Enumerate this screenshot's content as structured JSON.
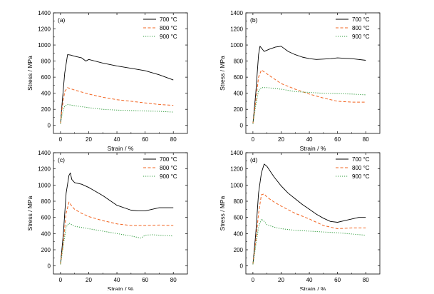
{
  "chart_data": [
    {
      "panel_label": "(a)",
      "type": "line",
      "xlabel": "Strain / %",
      "ylabel": "Stress / MPa",
      "xlim": [
        -5,
        90
      ],
      "ylim": [
        -100,
        1400
      ],
      "xticks": [
        0,
        20,
        40,
        60,
        80
      ],
      "yticks": [
        0,
        200,
        400,
        600,
        800,
        1000,
        1200,
        1400
      ],
      "legend_position": "top-right",
      "series": [
        {
          "name": "700 °C",
          "color": "#000000",
          "dash": "solid",
          "x": [
            0,
            1,
            3,
            5,
            7,
            10,
            15,
            18,
            20,
            30,
            40,
            50,
            60,
            70,
            80
          ],
          "y": [
            20,
            250,
            650,
            880,
            875,
            860,
            840,
            800,
            820,
            775,
            740,
            710,
            680,
            630,
            565
          ]
        },
        {
          "name": "800 °C",
          "color": "#f26522",
          "dash": "dashed",
          "x": [
            0,
            1,
            3,
            5,
            10,
            20,
            30,
            40,
            50,
            60,
            70,
            80
          ],
          "y": [
            20,
            200,
            420,
            470,
            440,
            390,
            350,
            320,
            300,
            280,
            260,
            250
          ]
        },
        {
          "name": "900 °C",
          "color": "#2e9b3a",
          "dash": "dotted",
          "x": [
            0,
            1,
            3,
            5,
            10,
            20,
            30,
            40,
            50,
            60,
            70,
            80
          ],
          "y": [
            20,
            130,
            240,
            260,
            245,
            220,
            200,
            190,
            185,
            180,
            175,
            165
          ]
        }
      ]
    },
    {
      "panel_label": "(b)",
      "type": "line",
      "xlabel": "Strain / %",
      "ylabel": "Stress / MPa",
      "xlim": [
        -5,
        90
      ],
      "ylim": [
        -100,
        1400
      ],
      "xticks": [
        0,
        20,
        40,
        60,
        80
      ],
      "yticks": [
        0,
        200,
        400,
        600,
        800,
        1000,
        1200,
        1400
      ],
      "legend_position": "top-right",
      "series": [
        {
          "name": "700 °C",
          "color": "#000000",
          "dash": "solid",
          "x": [
            0,
            2,
            4,
            5,
            8,
            12,
            16,
            20,
            25,
            30,
            35,
            40,
            45,
            50,
            55,
            60,
            65,
            70,
            75,
            80
          ],
          "y": [
            20,
            400,
            880,
            985,
            920,
            950,
            975,
            985,
            920,
            880,
            850,
            830,
            820,
            825,
            830,
            840,
            835,
            830,
            820,
            810
          ]
        },
        {
          "name": "800 °C",
          "color": "#f26522",
          "dash": "dashed",
          "x": [
            0,
            2,
            4,
            6,
            10,
            15,
            20,
            30,
            40,
            50,
            60,
            70,
            80
          ],
          "y": [
            20,
            300,
            600,
            690,
            640,
            580,
            520,
            450,
            390,
            340,
            300,
            290,
            290
          ]
        },
        {
          "name": "900 °C",
          "color": "#2e9b3a",
          "dash": "dotted",
          "x": [
            0,
            2,
            4,
            6,
            10,
            20,
            30,
            40,
            50,
            60,
            70,
            80
          ],
          "y": [
            20,
            250,
            430,
            470,
            470,
            450,
            420,
            410,
            400,
            395,
            390,
            380
          ]
        }
      ]
    },
    {
      "panel_label": "(c)",
      "type": "line",
      "xlabel": "Strain / %",
      "ylabel": "Stress / MPa",
      "xlim": [
        -5,
        90
      ],
      "ylim": [
        -100,
        1400
      ],
      "xticks": [
        0,
        20,
        40,
        60,
        80
      ],
      "yticks": [
        0,
        200,
        400,
        600,
        800,
        1000,
        1200,
        1400
      ],
      "legend_position": "top-right",
      "series": [
        {
          "name": "700 °C",
          "color": "#000000",
          "dash": "solid",
          "x": [
            0,
            2,
            4,
            6,
            7,
            8,
            10,
            15,
            20,
            30,
            40,
            50,
            55,
            60,
            65,
            70,
            75,
            80
          ],
          "y": [
            20,
            400,
            900,
            1120,
            1150,
            1070,
            1030,
            1010,
            970,
            870,
            750,
            690,
            680,
            680,
            700,
            720,
            720,
            720
          ]
        },
        {
          "name": "800 °C",
          "color": "#f26522",
          "dash": "dashed",
          "x": [
            0,
            2,
            4,
            6,
            8,
            10,
            15,
            20,
            30,
            40,
            50,
            60,
            70,
            80
          ],
          "y": [
            20,
            300,
            650,
            790,
            740,
            700,
            650,
            610,
            560,
            520,
            500,
            500,
            505,
            500
          ]
        },
        {
          "name": "900 °C",
          "color": "#2e9b3a",
          "dash": "dotted",
          "x": [
            0,
            2,
            4,
            6,
            8,
            10,
            20,
            30,
            40,
            50,
            57,
            60,
            65,
            70,
            75,
            80
          ],
          "y": [
            20,
            250,
            480,
            530,
            510,
            490,
            460,
            430,
            400,
            370,
            345,
            380,
            385,
            380,
            375,
            370
          ]
        }
      ]
    },
    {
      "panel_label": "(d)",
      "type": "line",
      "xlabel": "Strain / %",
      "ylabel": "Stress / MPa",
      "xlim": [
        -5,
        90
      ],
      "ylim": [
        -100,
        1400
      ],
      "xticks": [
        0,
        20,
        40,
        60,
        80
      ],
      "yticks": [
        0,
        200,
        400,
        600,
        800,
        1000,
        1200,
        1400
      ],
      "legend_position": "top-right",
      "series": [
        {
          "name": "700 °C",
          "color": "#000000",
          "dash": "solid",
          "x": [
            0,
            2,
            4,
            6,
            8,
            10,
            15,
            20,
            25,
            30,
            35,
            40,
            45,
            50,
            55,
            60,
            65,
            70,
            75,
            80
          ],
          "y": [
            20,
            400,
            900,
            1150,
            1260,
            1230,
            1100,
            990,
            900,
            830,
            760,
            700,
            640,
            590,
            550,
            540,
            560,
            580,
            600,
            600
          ]
        },
        {
          "name": "800 °C",
          "color": "#f26522",
          "dash": "dashed",
          "x": [
            0,
            2,
            4,
            6,
            8,
            10,
            15,
            20,
            30,
            40,
            50,
            60,
            70,
            80
          ],
          "y": [
            20,
            300,
            650,
            880,
            890,
            850,
            790,
            740,
            650,
            580,
            500,
            460,
            470,
            470
          ]
        },
        {
          "name": "900 °C",
          "color": "#2e9b3a",
          "dash": "dotted",
          "x": [
            0,
            2,
            4,
            6,
            8,
            10,
            15,
            20,
            30,
            40,
            50,
            60,
            70,
            80
          ],
          "y": [
            20,
            250,
            480,
            580,
            550,
            510,
            480,
            460,
            440,
            430,
            420,
            410,
            395,
            380
          ]
        }
      ]
    }
  ]
}
